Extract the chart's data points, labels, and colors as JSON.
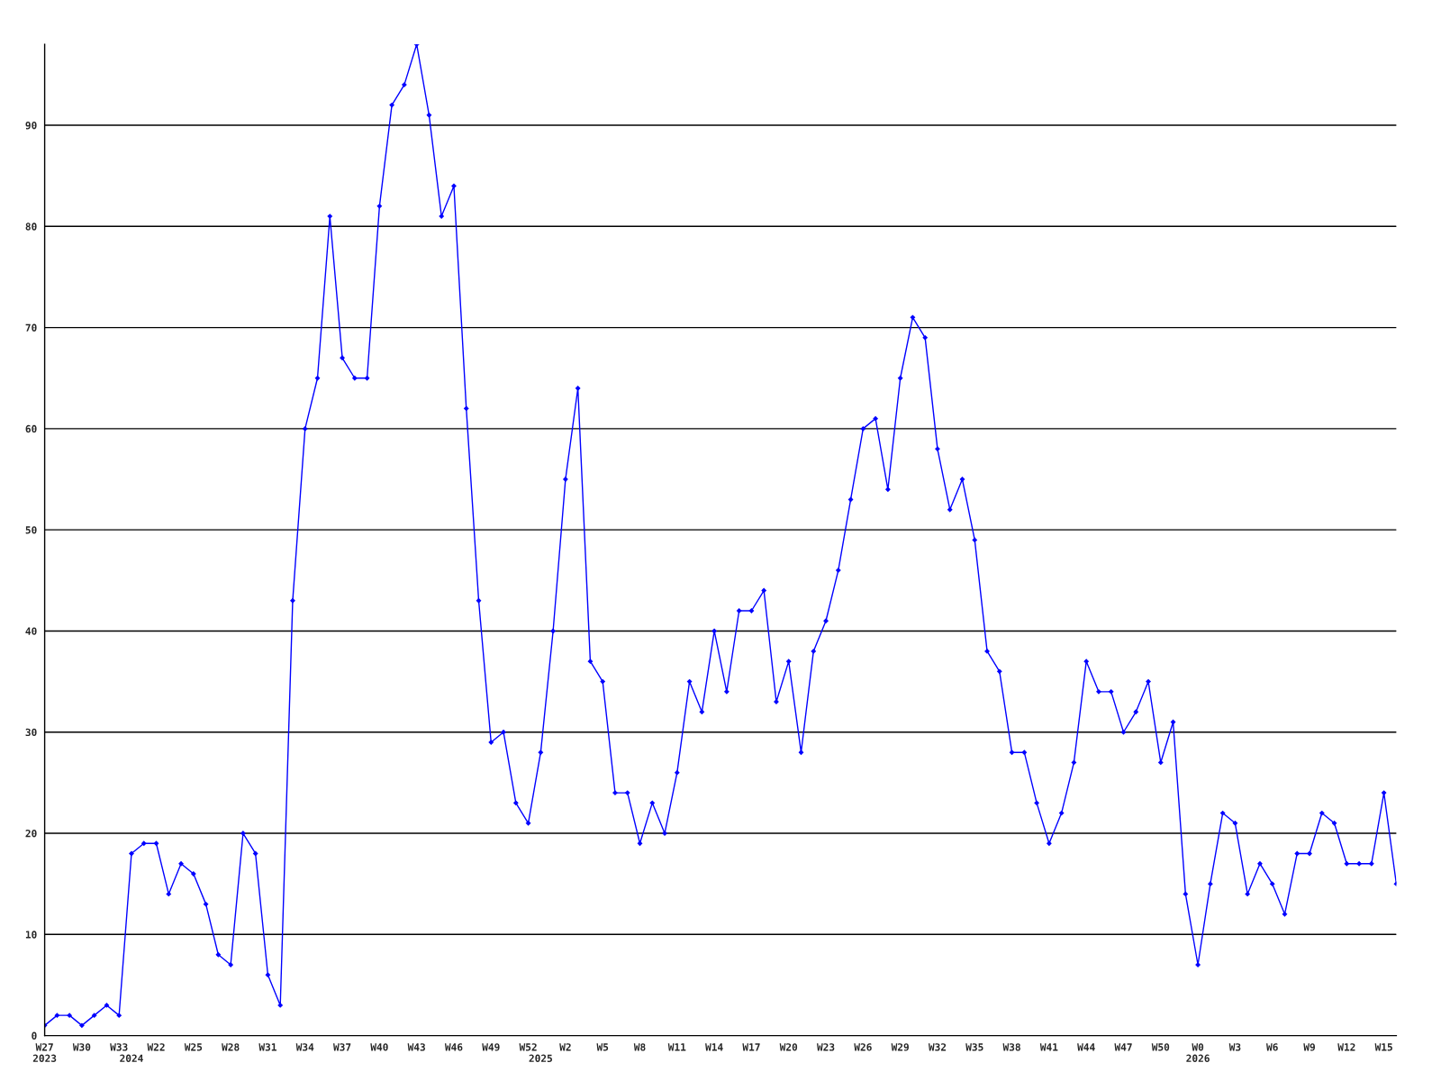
{
  "chart_data": {
    "type": "line",
    "categories": [
      "W27\n2023",
      null,
      null,
      "W30",
      null,
      null,
      "W33",
      "\n2024",
      null,
      "W22",
      null,
      null,
      "W25",
      null,
      null,
      "W28",
      null,
      null,
      "W31",
      null,
      null,
      "W34",
      null,
      null,
      "W37",
      null,
      null,
      "W40",
      null,
      null,
      "W43",
      null,
      null,
      "W46",
      null,
      null,
      "W49",
      null,
      null,
      "W52",
      "\n2025",
      null,
      "W2",
      null,
      null,
      "W5",
      null,
      null,
      "W8",
      null,
      null,
      "W11",
      null,
      null,
      "W14",
      null,
      null,
      "W17",
      null,
      null,
      "W20",
      null,
      null,
      "W23",
      null,
      null,
      "W26",
      null,
      null,
      "W29",
      null,
      null,
      "W32",
      null,
      null,
      "W35",
      null,
      null,
      "W38",
      null,
      null,
      "W41",
      null,
      null,
      "W44",
      null,
      null,
      "W47",
      null,
      null,
      "W50",
      null,
      null,
      "W0\n2026",
      null,
      null,
      "W3",
      null,
      null,
      "W6",
      null,
      null,
      "W9",
      null,
      null,
      "W12",
      null,
      null,
      "W15",
      null
    ],
    "series": [
      {
        "color": "#0000ff",
        "values": [
          1,
          2,
          2,
          1,
          2,
          3,
          2,
          18,
          19,
          19,
          14,
          17,
          16,
          13,
          8,
          7,
          20,
          18,
          6,
          3,
          43,
          60,
          65,
          81,
          67,
          65,
          65,
          82,
          92,
          94,
          98,
          91,
          81,
          84,
          62,
          43,
          29,
          30,
          23,
          21,
          28,
          40,
          55,
          64,
          37,
          35,
          24,
          24,
          19,
          23,
          20,
          26,
          35,
          32,
          40,
          34,
          42,
          42,
          44,
          33,
          37,
          28,
          38,
          41,
          46,
          53,
          60,
          61,
          54,
          65,
          71,
          69,
          58,
          52,
          55,
          49,
          38,
          36,
          28,
          28,
          23,
          19,
          22,
          27,
          37,
          34,
          34,
          30,
          32,
          35,
          27,
          31,
          14,
          7,
          15,
          22,
          21,
          14,
          17,
          15,
          12,
          18,
          18,
          22,
          21,
          17,
          17,
          17,
          24,
          15
        ]
      }
    ],
    "ylim": [
      0,
      98
    ],
    "yticks": [
      0,
      10,
      20,
      30,
      40,
      50,
      60,
      70,
      80,
      90
    ],
    "grid": "y",
    "marker": "diamond",
    "line_style": "solid"
  }
}
